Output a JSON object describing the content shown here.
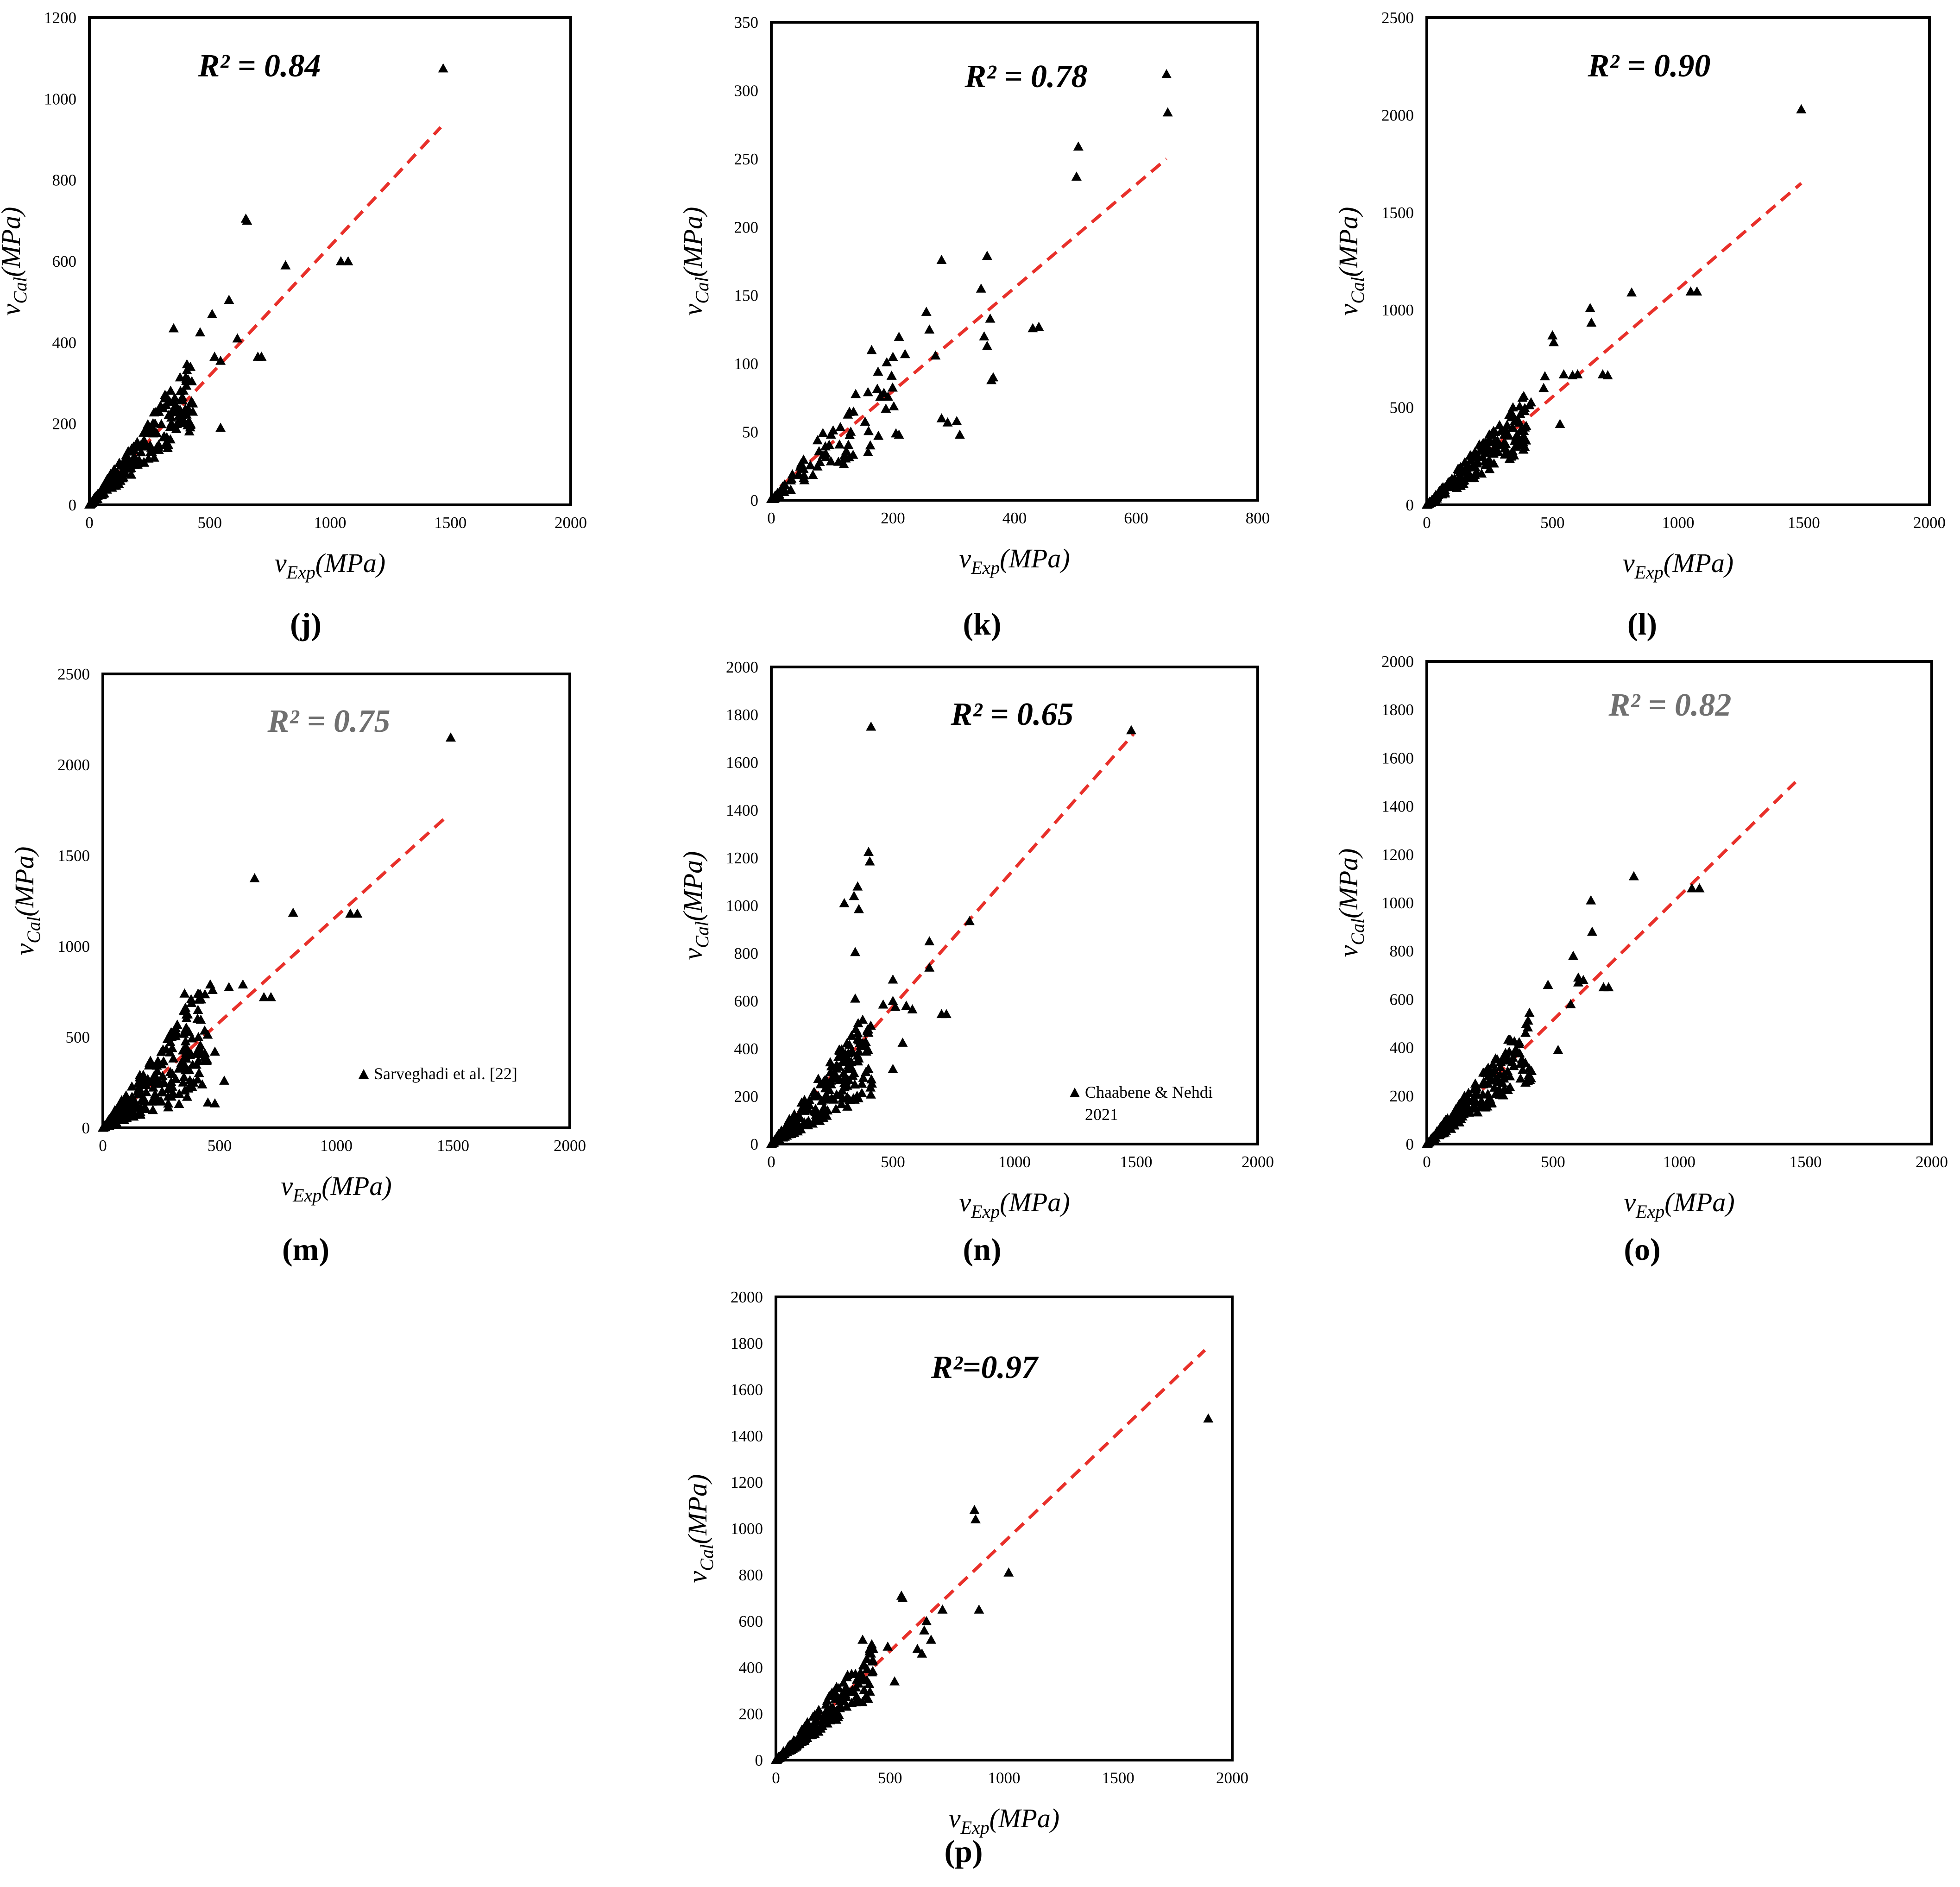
{
  "chart_data": [
    {
      "panel": "(j)",
      "type": "scatter",
      "r2": "R² = 0.84",
      "r2_color": "#000000",
      "xlim": [
        0,
        2000
      ],
      "ylim": [
        0,
        1200
      ],
      "xticks": [
        "0",
        "500",
        "1000",
        "1500",
        "2000"
      ],
      "yticks": [
        "0",
        "200",
        "400",
        "600",
        "800",
        "1000",
        "1200"
      ],
      "xlabel": "vExp(MPa)",
      "ylabel": "vCal(MPa)",
      "fit_line": [
        [
          0,
          0
        ],
        [
          1460,
          930
        ]
      ],
      "legend": "",
      "cluster": {
        "xmax": 430,
        "yscale": 0.64,
        "spread": 0.35,
        "count": 230,
        "seed": 1
      },
      "points": [
        [
          1470,
          1075
        ],
        [
          650,
          705
        ],
        [
          655,
          700
        ],
        [
          815,
          590
        ],
        [
          1045,
          600
        ],
        [
          1075,
          600
        ],
        [
          580,
          505
        ],
        [
          615,
          410
        ],
        [
          510,
          470
        ],
        [
          460,
          425
        ],
        [
          520,
          365
        ],
        [
          545,
          355
        ],
        [
          700,
          365
        ],
        [
          715,
          365
        ],
        [
          545,
          190
        ],
        [
          350,
          435
        ],
        [
          430,
          250
        ],
        [
          420,
          200
        ]
      ]
    },
    {
      "panel": "(k)",
      "type": "scatter",
      "r2": "R² = 0.78",
      "r2_color": "#000000",
      "xlim": [
        0,
        800
      ],
      "ylim": [
        0,
        350
      ],
      "xticks": [
        "0",
        "200",
        "400",
        "600",
        "800"
      ],
      "yticks": [
        "0",
        "50",
        "100",
        "150",
        "200",
        "250",
        "300",
        "350"
      ],
      "xlabel": "vExp(MPa)",
      "ylabel": "vCal(MPa)",
      "fit_line": [
        [
          15,
          10
        ],
        [
          650,
          250
        ]
      ],
      "legend": "",
      "cluster": {
        "xmax": 210,
        "yscale": 0.4,
        "spread": 0.45,
        "count": 90,
        "seed": 2
      },
      "points": [
        [
          650,
          312
        ],
        [
          652,
          284
        ],
        [
          505,
          259
        ],
        [
          502,
          237
        ],
        [
          355,
          179
        ],
        [
          280,
          176
        ],
        [
          345,
          155
        ],
        [
          360,
          133
        ],
        [
          255,
          138
        ],
        [
          260,
          125
        ],
        [
          270,
          106
        ],
        [
          350,
          120
        ],
        [
          355,
          113
        ],
        [
          365,
          90
        ],
        [
          362,
          88
        ],
        [
          430,
          126
        ],
        [
          440,
          127
        ],
        [
          280,
          60
        ],
        [
          290,
          57
        ],
        [
          305,
          58
        ],
        [
          310,
          48
        ],
        [
          165,
          110
        ],
        [
          200,
          105
        ],
        [
          220,
          107
        ],
        [
          205,
          49
        ],
        [
          210,
          48
        ]
      ]
    },
    {
      "panel": "(l)",
      "type": "scatter",
      "r2": "R² = 0.90",
      "r2_color": "#000000",
      "xlim": [
        0,
        2000
      ],
      "ylim": [
        0,
        2500
      ],
      "xticks": [
        "0",
        "500",
        "1000",
        "1500",
        "2000"
      ],
      "yticks": [
        "0",
        "500",
        "1000",
        "1500",
        "2000",
        "2500"
      ],
      "xlabel": "vExp(MPa)",
      "ylabel": "vCal(MPa)",
      "fit_line": [
        [
          0,
          0
        ],
        [
          1490,
          1650
        ]
      ],
      "legend": "",
      "cluster": {
        "xmax": 420,
        "yscale": 1.1,
        "spread": 0.35,
        "count": 220,
        "seed": 3
      },
      "points": [
        [
          1490,
          2030
        ],
        [
          650,
          1010
        ],
        [
          655,
          935
        ],
        [
          815,
          1090
        ],
        [
          1050,
          1095
        ],
        [
          1075,
          1095
        ],
        [
          500,
          870
        ],
        [
          505,
          835
        ],
        [
          545,
          670
        ],
        [
          580,
          665
        ],
        [
          600,
          670
        ],
        [
          700,
          670
        ],
        [
          720,
          665
        ],
        [
          470,
          660
        ],
        [
          465,
          600
        ],
        [
          530,
          415
        ]
      ]
    },
    {
      "panel": "(m)",
      "type": "scatter",
      "r2": "R² = 0.75",
      "r2_color": "#707070",
      "xlim": [
        0,
        2000
      ],
      "ylim": [
        0,
        2500
      ],
      "xticks": [
        "0",
        "500",
        "1000",
        "1500",
        "2000"
      ],
      "yticks": [
        "0",
        "500",
        "1000",
        "1500",
        "2000",
        "2500"
      ],
      "xlabel": "vExp(MPa)",
      "ylabel": "vCal(MPa)",
      "fit_line": [
        [
          0,
          0
        ],
        [
          1460,
          1700
        ]
      ],
      "legend": "Sarveghadi et al. [22]",
      "cluster": {
        "xmax": 450,
        "yscale": 1.15,
        "spread": 0.65,
        "count": 260,
        "seed": 4
      },
      "points": [
        [
          1490,
          2150
        ],
        [
          650,
          1375
        ],
        [
          815,
          1185
        ],
        [
          1060,
          1180
        ],
        [
          1090,
          1180
        ],
        [
          600,
          790
        ],
        [
          460,
          790
        ],
        [
          470,
          760
        ],
        [
          540,
          775
        ],
        [
          690,
          720
        ],
        [
          720,
          720
        ],
        [
          480,
          420
        ],
        [
          520,
          260
        ],
        [
          450,
          140
        ],
        [
          480,
          135
        ],
        [
          350,
          740
        ]
      ]
    },
    {
      "panel": "(n)",
      "type": "scatter",
      "r2": "R² = 0.65",
      "r2_color": "#000000",
      "xlim": [
        0,
        2000
      ],
      "ylim": [
        0,
        2000
      ],
      "xticks": [
        "0",
        "500",
        "1000",
        "1500",
        "2000"
      ],
      "yticks": [
        "0",
        "200",
        "400",
        "600",
        "800",
        "1000",
        "1200",
        "1400",
        "1600",
        "1800",
        "2000"
      ],
      "xlabel": "vExp(MPa)",
      "ylabel": "vCal(MPa)",
      "fit_line": [
        [
          0,
          0
        ],
        [
          1490,
          1720
        ]
      ],
      "legend": "Chaabene & Nehdi 2021",
      "cluster": {
        "xmax": 420,
        "yscale": 0.95,
        "spread": 0.5,
        "count": 240,
        "seed": 5
      },
      "points": [
        [
          410,
          1750
        ],
        [
          1480,
          1735
        ],
        [
          400,
          1225
        ],
        [
          405,
          1185
        ],
        [
          355,
          1080
        ],
        [
          340,
          1040
        ],
        [
          300,
          1010
        ],
        [
          360,
          985
        ],
        [
          345,
          805
        ],
        [
          345,
          610
        ],
        [
          815,
          935
        ],
        [
          650,
          850
        ],
        [
          650,
          740
        ],
        [
          500,
          690
        ],
        [
          460,
          585
        ],
        [
          500,
          600
        ],
        [
          510,
          575
        ],
        [
          555,
          580
        ],
        [
          580,
          565
        ],
        [
          700,
          545
        ],
        [
          720,
          545
        ],
        [
          540,
          425
        ],
        [
          500,
          315
        ]
      ]
    },
    {
      "panel": "(o)",
      "type": "scatter",
      "r2": "R² = 0.82",
      "r2_color": "#707070",
      "xlim": [
        0,
        2000
      ],
      "ylim": [
        0,
        2000
      ],
      "xticks": [
        "0",
        "500",
        "1000",
        "1500",
        "2000"
      ],
      "yticks": [
        "0",
        "200",
        "400",
        "600",
        "800",
        "1000",
        "1200",
        "1400",
        "1600",
        "1800",
        "2000"
      ],
      "xlabel": "vExp(MPa)",
      "ylabel": "vCal(MPa)",
      "fit_line": [
        [
          0,
          0
        ],
        [
          1460,
          1500
        ]
      ],
      "legend": "",
      "cluster": {
        "xmax": 420,
        "yscale": 1.0,
        "spread": 0.35,
        "count": 220,
        "seed": 6
      },
      "points": [
        [
          820,
          1110
        ],
        [
          650,
          1010
        ],
        [
          655,
          880
        ],
        [
          1050,
          1060
        ],
        [
          1080,
          1060
        ],
        [
          580,
          780
        ],
        [
          600,
          690
        ],
        [
          620,
          680
        ],
        [
          600,
          670
        ],
        [
          570,
          580
        ],
        [
          700,
          650
        ],
        [
          720,
          650
        ],
        [
          480,
          660
        ],
        [
          520,
          390
        ]
      ]
    },
    {
      "panel": "(p)",
      "type": "scatter",
      "r2": "R²=0.97",
      "r2_color": "#000000",
      "xlim": [
        0,
        2000
      ],
      "ylim": [
        0,
        2000
      ],
      "xticks": [
        "0",
        "500",
        "1000",
        "1500",
        "2000"
      ],
      "yticks": [
        "0",
        "200",
        "400",
        "600",
        "800",
        "1000",
        "1200",
        "1400",
        "1600",
        "1800",
        "2000"
      ],
      "xlabel": "vExp(MPa)",
      "ylabel": "vCal(MPa)",
      "fit_line": [
        [
          0,
          0
        ],
        [
          1880,
          1770
        ]
      ],
      "legend": "",
      "cluster": {
        "xmax": 430,
        "yscale": 0.93,
        "spread": 0.3,
        "count": 220,
        "seed": 7
      },
      "points": [
        [
          1895,
          1475
        ],
        [
          870,
          1080
        ],
        [
          875,
          1040
        ],
        [
          1020,
          810
        ],
        [
          890,
          650
        ],
        [
          550,
          710
        ],
        [
          555,
          700
        ],
        [
          660,
          600
        ],
        [
          730,
          650
        ],
        [
          650,
          560
        ],
        [
          680,
          520
        ],
        [
          620,
          480
        ],
        [
          640,
          460
        ],
        [
          420,
          500
        ],
        [
          490,
          490
        ],
        [
          520,
          340
        ],
        [
          380,
          520
        ]
      ]
    }
  ]
}
